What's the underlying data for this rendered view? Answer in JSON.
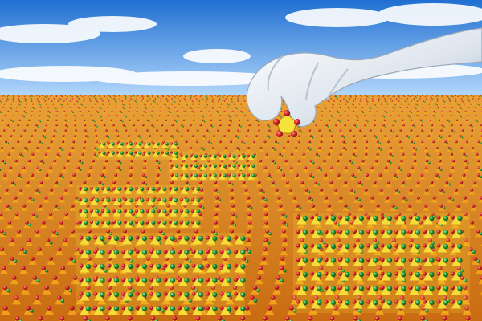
{
  "scene": {
    "description_elements": [
      "sky",
      "clouds",
      "crystal-lattice-surface",
      "gloved-hand",
      "molecule-unit"
    ],
    "colors": {
      "sky_top": "#1f6fd1",
      "sky_bottom": "#bfe0ff",
      "cloud": "#ffffff",
      "atom_orange": "#f2a21a",
      "atom_yellow": "#f5e23a",
      "atom_red": "#d8262a",
      "atom_green": "#1f9a3a",
      "hand": "#dfe6ee"
    }
  }
}
